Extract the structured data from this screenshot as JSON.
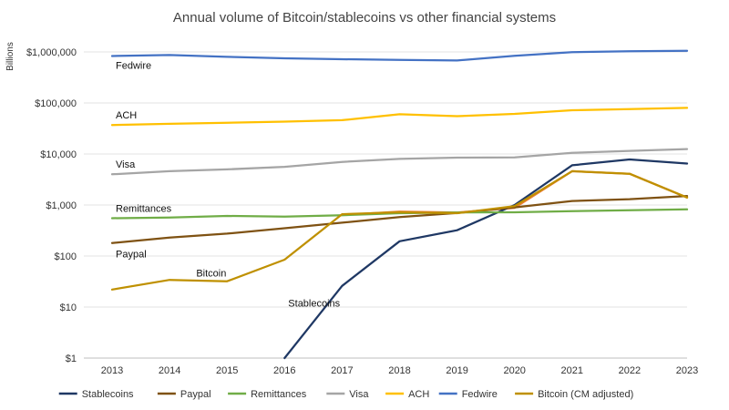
{
  "chart_data": {
    "type": "line",
    "title": "Annual volume of Bitcoin/stablecoins vs other financial systems",
    "ylabel": "Billions",
    "xlabel": "",
    "y_scale": "log",
    "ylim": [
      1,
      1000000
    ],
    "y_ticks": [
      1,
      10,
      100,
      1000,
      10000,
      100000,
      1000000
    ],
    "y_tick_labels": [
      "$1",
      "$10",
      "$100",
      "$1,000",
      "$10,000",
      "$100,000",
      "$1,000,000"
    ],
    "grid": "horizontal",
    "legend_position": "bottom",
    "x": [
      "2013",
      "2014",
      "2015",
      "2016",
      "2017",
      "2018",
      "2019",
      "2020",
      "2021",
      "2022",
      "2023"
    ],
    "series": [
      {
        "name": "Stablecoins",
        "color": "#1f3864",
        "values": [
          null,
          null,
          null,
          0.9,
          26,
          195,
          320,
          1000,
          6000,
          7800,
          6500
        ]
      },
      {
        "name": "Paypal",
        "color": "#7f5213",
        "values": [
          180,
          230,
          275,
          350,
          450,
          580,
          700,
          900,
          1200,
          1300,
          1500
        ]
      },
      {
        "name": "Remittances",
        "color": "#70ad47",
        "values": [
          550,
          570,
          610,
          590,
          630,
          690,
          715,
          720,
          760,
          790,
          820
        ]
      },
      {
        "name": "Visa",
        "color": "#a5a5a5",
        "values": [
          4000,
          4600,
          5000,
          5600,
          7000,
          8000,
          8500,
          8600,
          10500,
          11500,
          12500
        ]
      },
      {
        "name": "ACH",
        "color": "#ffc000",
        "values": [
          37000,
          39000,
          41000,
          43000,
          46000,
          60000,
          55000,
          61000,
          72000,
          76000,
          80000
        ]
      },
      {
        "name": "Fedwire",
        "color": "#4472c4",
        "values": [
          830000,
          870000,
          800000,
          750000,
          720000,
          700000,
          680000,
          840000,
          990000,
          1030000,
          1050000
        ]
      },
      {
        "name": "Bitcoin (CM adjusted)",
        "color": "#bf9000",
        "values": [
          22,
          34,
          32,
          85,
          660,
          720,
          690,
          950,
          4600,
          4100,
          1400
        ]
      }
    ],
    "extra_series": [
      {
        "color": "#ed7d31",
        "values": [
          null,
          null,
          null,
          null,
          640,
          740,
          710,
          880,
          4600,
          4100,
          1400
        ]
      }
    ],
    "annotations": [
      {
        "text": "Fedwire",
        "x": "2013",
        "y": 550000
      },
      {
        "text": "ACH",
        "x": "2013",
        "y": 58000
      },
      {
        "text": "Visa",
        "x": "2013",
        "y": 6400
      },
      {
        "text": "Remittances",
        "x": "2013",
        "y": 870
      },
      {
        "text": "Paypal",
        "x": "2013",
        "y": 110
      },
      {
        "text": "Bitcoin",
        "x": "2014.4",
        "y": 47
      },
      {
        "text": "Stablecoins",
        "x": "2016",
        "y": 12
      }
    ]
  }
}
